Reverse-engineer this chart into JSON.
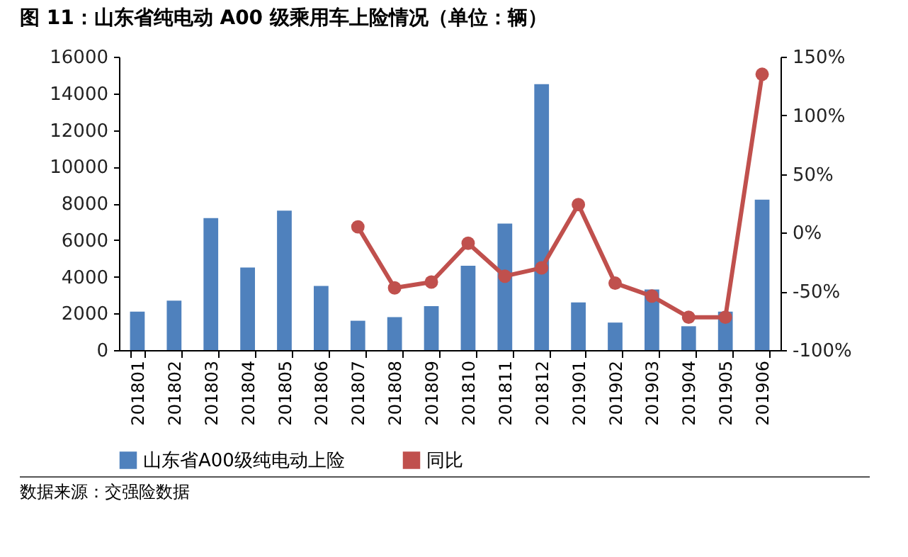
{
  "chart_data": {
    "type": "bar",
    "title": "图 11：山东省纯电动 A00 级乘用车上险情况（单位：辆）",
    "annotations": [
      "数据来源：交强险数据"
    ],
    "categories": [
      "201801",
      "201802",
      "201803",
      "201804",
      "201805",
      "201806",
      "201807",
      "201808",
      "201809",
      "201810",
      "201811",
      "201812",
      "201901",
      "201902",
      "201903",
      "201904",
      "201905",
      "201906"
    ],
    "series": [
      {
        "name": "山东省A00级纯电动上险",
        "color": "#4f81bd",
        "values": [
          2100,
          2700,
          7200,
          4500,
          7600,
          3500,
          1600,
          1800,
          2400,
          4600,
          6900,
          14500,
          2600,
          1500,
          3300,
          1300,
          2100,
          8200
        ]
      },
      {
        "name": "同比",
        "type": "line",
        "axis": "y2",
        "color": "#c0504d",
        "values": [
          null,
          null,
          null,
          null,
          null,
          null,
          5,
          -47,
          -42,
          -9,
          -37,
          -30,
          24,
          -43,
          -54,
          -72,
          -72,
          135
        ]
      }
    ],
    "ylim": [
      0,
      16000
    ],
    "yticks": [
      0,
      2000,
      4000,
      6000,
      8000,
      10000,
      12000,
      14000,
      16000
    ],
    "y2lim": [
      -100,
      150
    ],
    "y2ticks": [
      {
        "value": -100,
        "label": "-100%"
      },
      {
        "value": -50,
        "label": "-50%"
      },
      {
        "value": 0,
        "label": "0%"
      },
      {
        "value": 50,
        "label": "50%"
      },
      {
        "value": 100,
        "label": "100%"
      },
      {
        "value": 150,
        "label": "150%"
      }
    ],
    "legend": "bottom",
    "marker": "circle"
  }
}
